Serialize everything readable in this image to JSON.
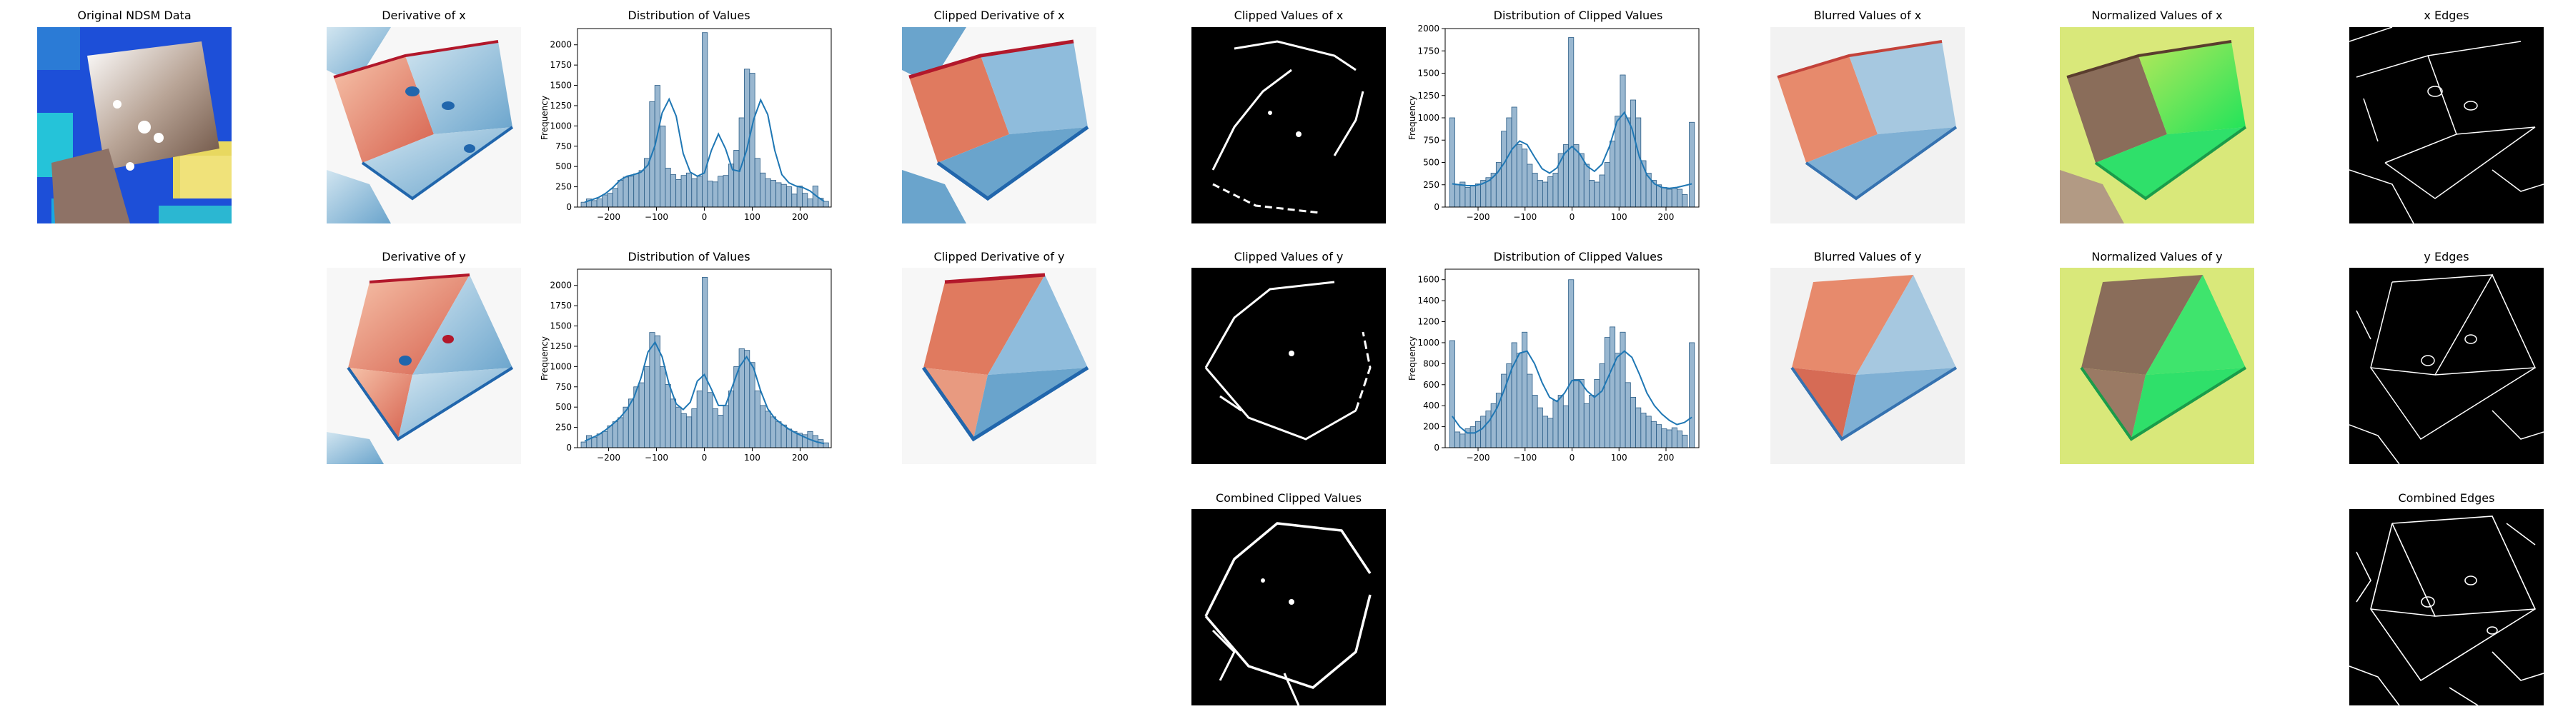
{
  "figure": {
    "titles": {
      "original": "Original NDSM Data",
      "deriv_x": "Derivative of x",
      "dist_x": "Distribution of Values",
      "clipped_deriv_x": "Clipped Derivative of x",
      "clipped_values_x": "Clipped Values  of x",
      "dist_clipped_x": "Distribution of Clipped Values",
      "blurred_x": "Blurred Values of x",
      "normalized_x": "Normalized Values of x",
      "edges_x": "x Edges",
      "deriv_y": "Derivative of y",
      "dist_y": "Distribution of Values",
      "clipped_deriv_y": "Clipped Derivative of y",
      "clipped_values_y": "Clipped Values  of y",
      "dist_clipped_y": "Distribution of Clipped Values",
      "blurred_y": "Blurred Values of y",
      "normalized_y": "Normalized Values of y",
      "edges_y": "y Edges",
      "combined_clipped": "Combined Clipped Values",
      "combined_edges": "Combined Edges"
    },
    "colors": {
      "hist_fill": "#87aac8",
      "hist_edge": "#2b5d87",
      "kde_line": "#1f77b4",
      "neg_red": "#b2182b",
      "pos_blue": "#2166ac"
    }
  },
  "chart_data": [
    {
      "id": "dist_x",
      "type": "bar",
      "title": "Distribution of Values",
      "xlabel": "",
      "ylabel": "Frequency",
      "xlim": [
        -265,
        265
      ],
      "ylim": [
        0,
        2200
      ],
      "xticks": [
        -200,
        -100,
        0,
        100,
        200
      ],
      "yticks": [
        0,
        250,
        500,
        750,
        1000,
        1250,
        1500,
        1750,
        2000
      ],
      "x": [
        -252,
        -241,
        -230,
        -219,
        -208,
        -197,
        -186,
        -175,
        -164,
        -153,
        -142,
        -131,
        -120,
        -109,
        -98,
        -87,
        -76,
        -65,
        -54,
        -43,
        -32,
        -21,
        -10,
        1,
        12,
        23,
        34,
        45,
        56,
        67,
        78,
        89,
        100,
        111,
        122,
        133,
        144,
        155,
        166,
        177,
        188,
        199,
        210,
        221,
        232,
        243,
        254
      ],
      "values": [
        60,
        100,
        80,
        100,
        150,
        170,
        230,
        330,
        370,
        380,
        410,
        450,
        600,
        1300,
        1500,
        1000,
        480,
        400,
        340,
        390,
        420,
        350,
        380,
        2150,
        320,
        310,
        380,
        390,
        530,
        700,
        1100,
        1700,
        1650,
        600,
        420,
        350,
        330,
        300,
        280,
        250,
        160,
        260,
        170,
        100,
        260,
        110,
        70
      ],
      "kde": [
        60,
        90,
        120,
        170,
        240,
        330,
        380,
        400,
        430,
        520,
        760,
        1160,
        1330,
        1120,
        660,
        430,
        380,
        420,
        700,
        900,
        720,
        460,
        440,
        700,
        1080,
        1320,
        1140,
        700,
        400,
        300,
        260,
        240,
        200,
        130,
        70
      ]
    },
    {
      "id": "dist_clipped_x",
      "type": "bar",
      "title": "Distribution of Clipped Values",
      "xlabel": "",
      "ylabel": "Frequency",
      "xlim": [
        -270,
        270
      ],
      "ylim": [
        0,
        2000
      ],
      "xticks": [
        -200,
        -100,
        0,
        100,
        200
      ],
      "yticks": [
        0,
        250,
        500,
        750,
        1000,
        1250,
        1500,
        1750,
        2000
      ],
      "x": [
        -255,
        -244,
        -233,
        -222,
        -211,
        -200,
        -189,
        -178,
        -167,
        -156,
        -145,
        -134,
        -123,
        -112,
        -101,
        -90,
        -79,
        -68,
        -57,
        -46,
        -35,
        -24,
        -13,
        -2,
        9,
        20,
        31,
        42,
        53,
        64,
        75,
        86,
        97,
        108,
        119,
        130,
        141,
        152,
        163,
        174,
        185,
        196,
        207,
        218,
        229,
        240,
        255
      ],
      "values": [
        1000,
        250,
        280,
        220,
        240,
        260,
        300,
        330,
        380,
        500,
        850,
        1000,
        1120,
        700,
        650,
        480,
        380,
        300,
        280,
        340,
        380,
        600,
        700,
        1900,
        700,
        600,
        480,
        300,
        280,
        360,
        500,
        740,
        1020,
        1480,
        1000,
        1200,
        1000,
        520,
        380,
        300,
        250,
        220,
        200,
        210,
        200,
        140,
        950
      ],
      "kde": [
        260,
        250,
        240,
        240,
        260,
        300,
        380,
        500,
        650,
        740,
        700,
        560,
        430,
        380,
        440,
        600,
        680,
        600,
        460,
        400,
        480,
        680,
        960,
        1060,
        880,
        560,
        360,
        260,
        220,
        210,
        220,
        240,
        260
      ]
    },
    {
      "id": "dist_y",
      "type": "bar",
      "title": "Distribution of Values",
      "xlabel": "",
      "ylabel": "Frequency",
      "xlim": [
        -265,
        265
      ],
      "ylim": [
        0,
        2200
      ],
      "xticks": [
        -200,
        -100,
        0,
        100,
        200
      ],
      "yticks": [
        0,
        250,
        500,
        750,
        1000,
        1250,
        1500,
        1750,
        2000
      ],
      "x": [
        -252,
        -241,
        -230,
        -219,
        -208,
        -197,
        -186,
        -175,
        -164,
        -153,
        -142,
        -131,
        -120,
        -109,
        -98,
        -87,
        -76,
        -65,
        -54,
        -43,
        -32,
        -21,
        -10,
        1,
        12,
        23,
        34,
        45,
        56,
        67,
        78,
        89,
        100,
        111,
        122,
        133,
        144,
        155,
        166,
        177,
        188,
        199,
        210,
        221,
        232,
        243,
        254
      ],
      "values": [
        70,
        150,
        130,
        170,
        200,
        270,
        320,
        370,
        500,
        600,
        750,
        800,
        1000,
        1420,
        1380,
        1000,
        780,
        600,
        500,
        420,
        380,
        480,
        700,
        2100,
        680,
        480,
        400,
        520,
        700,
        1000,
        1220,
        1200,
        1050,
        700,
        520,
        450,
        380,
        320,
        280,
        230,
        200,
        180,
        160,
        200,
        150,
        100,
        60
      ],
      "kde": [
        80,
        120,
        160,
        220,
        290,
        370,
        470,
        620,
        860,
        1180,
        1300,
        1120,
        780,
        540,
        470,
        560,
        820,
        900,
        720,
        520,
        520,
        760,
        1000,
        1120,
        980,
        700,
        480,
        360,
        290,
        230,
        180,
        140,
        100,
        70,
        50
      ]
    },
    {
      "id": "dist_clipped_y",
      "type": "bar",
      "title": "Distribution of Clipped Values",
      "xlabel": "",
      "ylabel": "Frequency",
      "xlim": [
        -270,
        270
      ],
      "ylim": [
        0,
        1700
      ],
      "xticks": [
        -200,
        -100,
        0,
        100,
        200
      ],
      "yticks": [
        0,
        200,
        400,
        600,
        800,
        1000,
        1200,
        1400,
        1600
      ],
      "x": [
        -255,
        -244,
        -233,
        -222,
        -211,
        -200,
        -189,
        -178,
        -167,
        -156,
        -145,
        -134,
        -123,
        -112,
        -101,
        -90,
        -79,
        -68,
        -57,
        -46,
        -35,
        -24,
        -13,
        -2,
        9,
        20,
        31,
        42,
        53,
        64,
        75,
        86,
        97,
        108,
        119,
        130,
        141,
        152,
        163,
        174,
        185,
        196,
        207,
        218,
        229,
        240,
        255
      ],
      "values": [
        1020,
        150,
        130,
        180,
        200,
        250,
        300,
        350,
        420,
        520,
        700,
        800,
        1000,
        900,
        1100,
        700,
        500,
        380,
        300,
        280,
        450,
        500,
        400,
        1600,
        650,
        650,
        420,
        500,
        650,
        800,
        1050,
        1150,
        900,
        1100,
        620,
        480,
        380,
        330,
        300,
        250,
        220,
        180,
        170,
        190,
        160,
        120,
        1000
      ],
      "kde": [
        300,
        200,
        140,
        140,
        180,
        260,
        380,
        560,
        760,
        900,
        920,
        800,
        620,
        480,
        440,
        520,
        640,
        640,
        540,
        480,
        540,
        700,
        860,
        920,
        860,
        700,
        520,
        400,
        320,
        260,
        220,
        240,
        290
      ]
    }
  ]
}
